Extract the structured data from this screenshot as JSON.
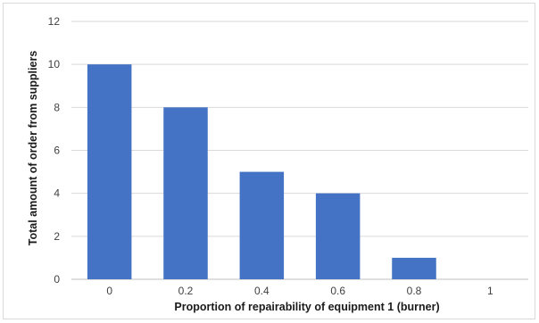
{
  "chart_data": {
    "type": "bar",
    "title": "",
    "xlabel": "Proportion of repairability of equipment 1 (burner)",
    "ylabel": "Total amount of order from suppliers",
    "categories": [
      "0",
      "0.2",
      "0.4",
      "0.6",
      "0.8",
      "1"
    ],
    "values": [
      10,
      8,
      5,
      4,
      1,
      0
    ],
    "ylim": [
      0,
      12
    ],
    "yticks": [
      "0",
      "2",
      "4",
      "6",
      "8",
      "10",
      "12"
    ],
    "grid": true,
    "legend": "none",
    "colors": {
      "bar": "#4472C4",
      "grid": "#d9d9d9",
      "axis": "#bfbfbf"
    }
  }
}
